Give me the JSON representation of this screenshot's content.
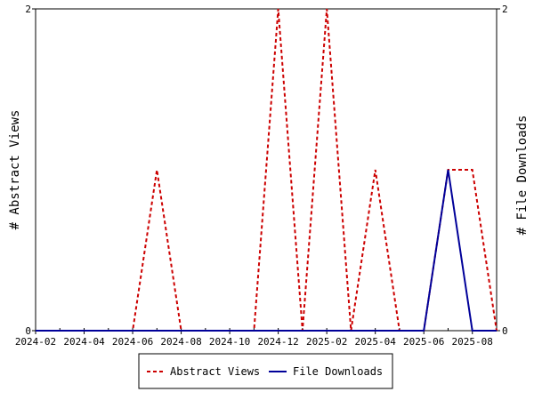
{
  "chart_data": {
    "type": "line",
    "x": [
      "2024-02",
      "2024-03",
      "2024-04",
      "2024-05",
      "2024-06",
      "2024-07",
      "2024-08",
      "2024-09",
      "2024-10",
      "2024-11",
      "2024-12",
      "2025-01",
      "2025-02",
      "2025-03",
      "2025-04",
      "2025-05",
      "2025-06",
      "2025-07",
      "2025-08",
      "2025-09"
    ],
    "x_ticks": [
      "2024-02",
      "2024-04",
      "2024-06",
      "2024-08",
      "2024-10",
      "2024-12",
      "2025-02",
      "2025-04",
      "2025-06",
      "2025-08"
    ],
    "series": [
      {
        "name": "Abstract Views",
        "axis": "left",
        "color": "#cc0000",
        "dash": true,
        "values": [
          0,
          0,
          0,
          0,
          0,
          1,
          0,
          0,
          0,
          0,
          2,
          0,
          2,
          0,
          1,
          0,
          0,
          1,
          1,
          0
        ]
      },
      {
        "name": "File Downloads",
        "axis": "right",
        "color": "#000099",
        "dash": false,
        "values": [
          0,
          0,
          0,
          0,
          0,
          0,
          0,
          0,
          0,
          0,
          0,
          0,
          0,
          0,
          0,
          0,
          0,
          1,
          0,
          0
        ]
      }
    ],
    "ylabel": "# Abstract Views",
    "y2label": "# File Downloads",
    "ylim": [
      0,
      2
    ],
    "y2lim": [
      0,
      2
    ],
    "y_ticks": [
      "0",
      "2"
    ],
    "y2_ticks": [
      "0",
      "2"
    ],
    "legend_position": "bottom"
  }
}
